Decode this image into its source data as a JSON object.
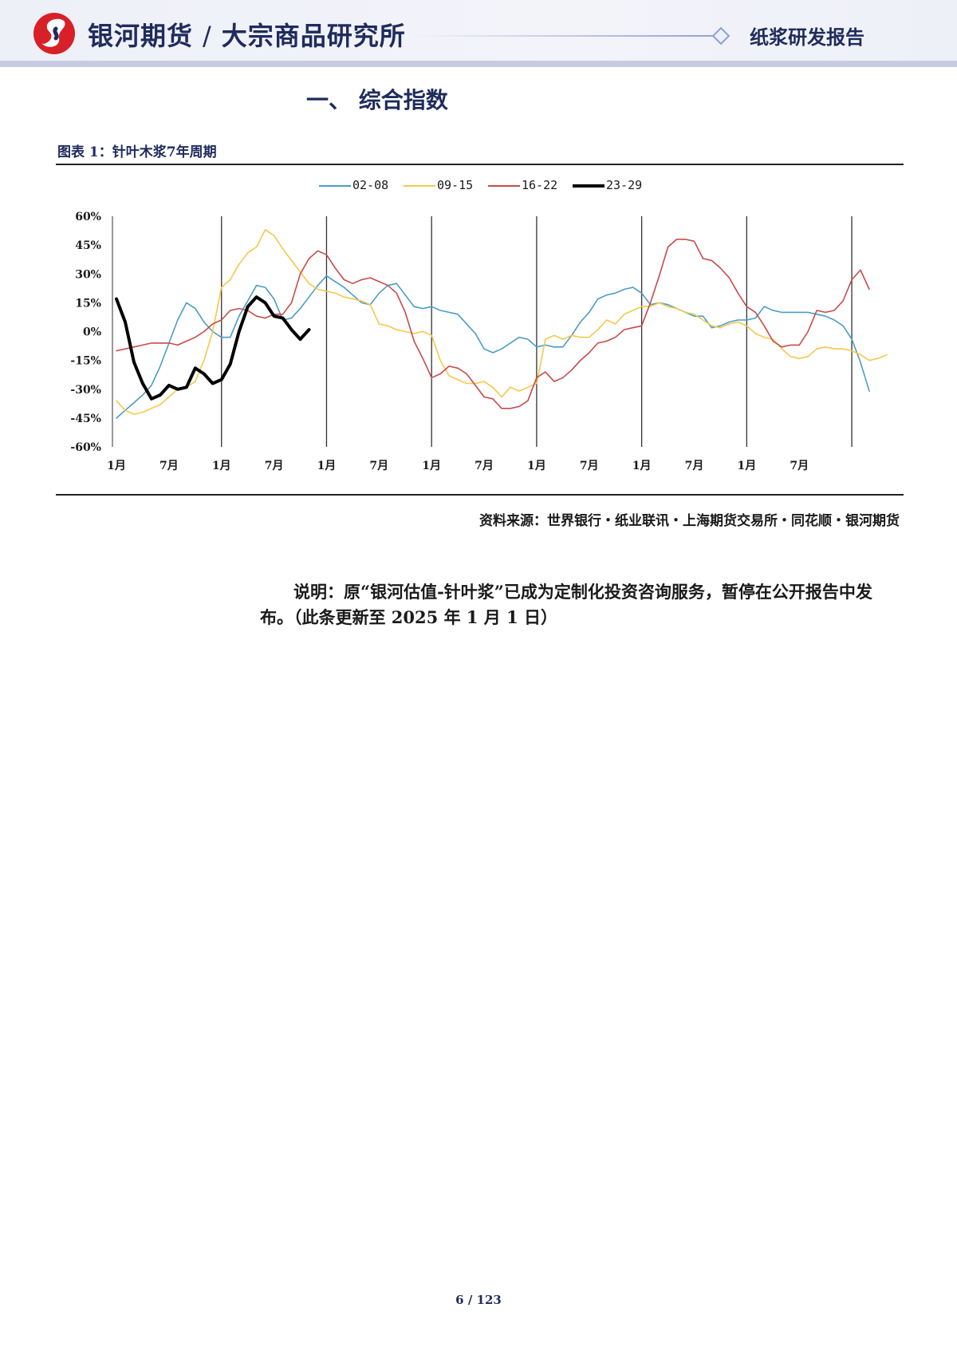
{
  "header": {
    "brand_left": "银河期货",
    "brand_right": "大宗商品研究所",
    "report_type": "纸浆研发报告"
  },
  "section_title": "一、 综合指数",
  "figure_title": "图表 1：针叶木浆7年周期",
  "source": "资料来源：世界银行・纸业联讯・上海期货交易所・同花顺・银河期货",
  "note": "说明：原“银河估值-针叶浆”已成为定制化投资咨询服务，暂停在公开报告中发布。（此条更新至 2025 年 1 月 1 日）",
  "footer": {
    "page": "6 / 123"
  },
  "colors": {
    "brand": "#1f2b5c",
    "header_bg": "#eef0f8"
  },
  "chart_data": {
    "type": "line",
    "title": "",
    "xlabel": "",
    "ylabel": "",
    "ylim": [
      -60,
      60
    ],
    "yticks": [
      "60%",
      "45%",
      "30%",
      "15%",
      "0%",
      "-15%",
      "-30%",
      "-45%",
      "-60%"
    ],
    "xticks": [
      "1月",
      "7月",
      "1月",
      "7月",
      "1月",
      "7月",
      "1月",
      "7月",
      "1月",
      "7月",
      "1月",
      "7月",
      "1月",
      "7月"
    ],
    "x_unit": "month index (0 = first 1月)",
    "year_dividers": [
      12,
      24,
      36,
      48,
      60,
      72,
      84
    ],
    "legend_position": "top",
    "grid": false,
    "series": [
      {
        "name": "02-08",
        "color": "#4a9cc8",
        "width": 1.6,
        "values": [
          -45,
          -41,
          -37,
          -33,
          -28,
          -18,
          -6,
          6,
          15,
          12,
          5,
          0,
          -3,
          -3,
          8,
          16,
          24,
          23,
          17,
          6,
          7,
          12,
          18,
          24,
          29,
          26,
          23,
          19,
          15,
          14,
          20,
          24,
          25,
          19,
          13,
          12,
          13,
          11,
          10,
          9,
          4,
          -1,
          -9,
          -11,
          -9,
          -6,
          -3,
          -4,
          -8,
          -7,
          -8,
          -8,
          -2,
          5,
          10,
          17,
          19,
          20,
          22,
          23,
          20,
          14,
          15,
          14,
          12,
          10,
          8,
          8,
          2,
          3,
          5,
          6,
          6,
          7,
          13,
          11,
          10,
          10,
          10,
          10,
          9,
          8,
          6,
          3,
          -4,
          -16,
          -31
        ],
        "thick": false
      },
      {
        "name": "09-15",
        "color": "#f4c84a",
        "width": 1.6,
        "values": [
          -36,
          -41,
          -43,
          -42,
          -40,
          -38,
          -34,
          -30,
          -29,
          -26,
          -15,
          0,
          23,
          27,
          35,
          41,
          44,
          53,
          50,
          43,
          37,
          31,
          25,
          22,
          21,
          20,
          18,
          17,
          16,
          14,
          4,
          3,
          1,
          0,
          -1,
          0,
          -2,
          -15,
          -23,
          -25,
          -27,
          -27,
          -26,
          -29,
          -34,
          -29,
          -31,
          -29,
          -27,
          -4,
          -2,
          -4,
          -2,
          -3,
          -3,
          1,
          6,
          4,
          9,
          11,
          13,
          13,
          15,
          13,
          12,
          10,
          9,
          6,
          3,
          2,
          4,
          5,
          3,
          -1,
          -3,
          -4,
          -9,
          -13,
          -14,
          -13,
          -9,
          -8,
          -9,
          -9,
          -10,
          -12,
          -15,
          -14,
          -12
        ],
        "thick": false
      },
      {
        "name": "16-22",
        "color": "#c94a4a",
        "width": 1.6,
        "values": [
          -10,
          -9,
          -8,
          -7,
          -6,
          -6,
          -6,
          -7,
          -5,
          -3,
          0,
          4,
          6,
          11,
          12,
          11,
          8,
          7,
          9,
          9,
          15,
          30,
          38,
          42,
          40,
          33,
          27,
          25,
          27,
          28,
          26,
          24,
          20,
          10,
          -5,
          -14,
          -24,
          -22,
          -18,
          -19,
          -22,
          -28,
          -34,
          -35,
          -40,
          -40,
          -39,
          -36,
          -24,
          -21,
          -26,
          -24,
          -20,
          -15,
          -11,
          -6,
          -5,
          -3,
          1,
          2,
          3,
          15,
          29,
          44,
          48,
          48,
          47,
          38,
          37,
          33,
          28,
          20,
          13,
          10,
          3,
          -5,
          -8,
          -7,
          -7,
          0,
          11,
          10,
          11,
          16,
          27,
          32,
          22
        ],
        "thick": false
      },
      {
        "name": "23-29",
        "color": "#000000",
        "width": 4,
        "values": [
          17,
          5,
          -16,
          -27,
          -35,
          -33,
          -28,
          -30,
          -29,
          -19,
          -22,
          -27,
          -25,
          -17,
          0,
          13,
          18,
          15,
          8,
          7,
          1,
          -4,
          1
        ],
        "thick": true
      }
    ]
  }
}
